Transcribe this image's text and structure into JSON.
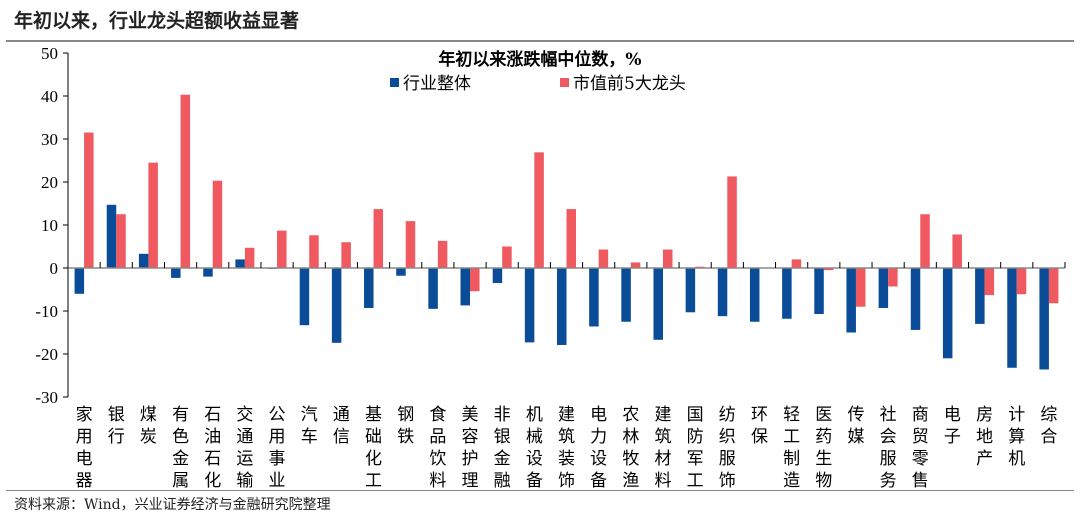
{
  "header": {
    "title": "年初以来，行业龙头超额收益显著"
  },
  "footer": {
    "source": "资料来源：Wind，兴业证券经济与金融研究院整理"
  },
  "chart_data": {
    "type": "bar",
    "title": "年初以来涨跌幅中位数，%",
    "legend_position": "top-right",
    "ylim": [
      -30,
      50
    ],
    "yticks": [
      -30,
      -20,
      -10,
      0,
      10,
      20,
      30,
      40,
      50
    ],
    "grid": false,
    "categories": [
      "家用电器",
      "银行",
      "煤炭",
      "有色金属",
      "石油石化",
      "交通运输",
      "公用事业",
      "汽车",
      "通信",
      "基础化工",
      "钢铁",
      "食品饮料",
      "美容护理",
      "非银金融",
      "机械设备",
      "建筑装饰",
      "电力设备",
      "农林牧渔",
      "建筑材料",
      "国防军工",
      "纺织服饰",
      "环保",
      "轻工制造",
      "医药生物",
      "传媒",
      "社会服务",
      "商贸零售",
      "电子",
      "房地产",
      "计算机",
      "综合"
    ],
    "series": [
      {
        "name": "行业整体",
        "color": "#0a4c97",
        "values": [
          -6.0,
          14.7,
          3.3,
          -2.3,
          -2.0,
          2.0,
          -0.2,
          -13.3,
          -17.4,
          -9.3,
          -1.8,
          -9.5,
          -8.7,
          -3.5,
          -17.3,
          -17.9,
          -13.6,
          -12.5,
          -16.7,
          -10.3,
          -11.2,
          -12.5,
          -11.8,
          -10.7,
          -15.0,
          -9.3,
          -14.4,
          -21.0,
          -13.0,
          -23.2,
          -23.6
        ]
      },
      {
        "name": "市值前5大龙头",
        "color": "#f0595f",
        "values": [
          31.5,
          12.5,
          24.5,
          40.3,
          20.3,
          4.7,
          8.7,
          7.6,
          6.0,
          13.7,
          10.9,
          6.3,
          -5.4,
          5.0,
          26.9,
          13.7,
          4.3,
          1.3,
          4.3,
          0.3,
          21.3,
          0.0,
          2.0,
          -0.5,
          -9.0,
          -4.3,
          12.5,
          7.8,
          -6.3,
          -6.1,
          -8.2
        ]
      }
    ]
  }
}
